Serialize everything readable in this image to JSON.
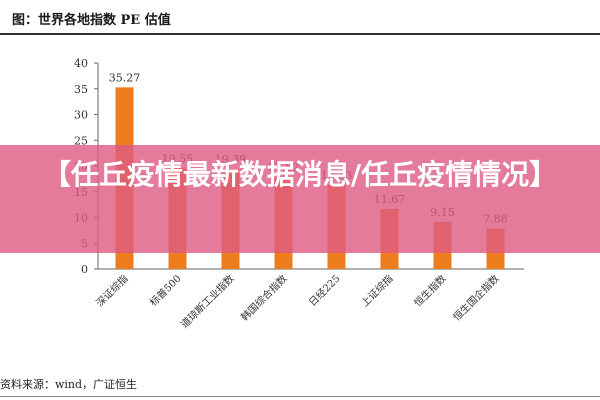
{
  "header": {
    "title": "图：世界各地指数 PE 估值"
  },
  "footer": {
    "source": "资料来源：wind，广证恒生"
  },
  "overlay": {
    "text": "【任丘疫情最新数据消息/任丘疫情情况】"
  },
  "colors": {
    "bar": "#ee7d1e",
    "overlay": "#de5a82",
    "axis": "#666666"
  },
  "chart_data": {
    "type": "bar",
    "title": "世界各地指数 PE 估值",
    "xlabel": "",
    "ylabel": "",
    "categories": [
      "深证综指",
      "标普500",
      "道琼斯工业指数",
      "韩国综合指数",
      "日经225",
      "上证综指",
      "恒生指数",
      "恒生国企指数"
    ],
    "values": [
      35.27,
      19.55,
      19.39,
      17.82,
      16.33,
      11.67,
      9.15,
      7.88
    ],
    "value_labels": [
      "35.27",
      "19.55",
      "19.39",
      "17.82",
      "16.33",
      "11.67",
      "9.15",
      "7.88"
    ],
    "ylim": [
      0,
      40
    ],
    "yticks": [
      0,
      5,
      10,
      15,
      20,
      25,
      30,
      35,
      40
    ],
    "grid": false,
    "legend": "none"
  }
}
